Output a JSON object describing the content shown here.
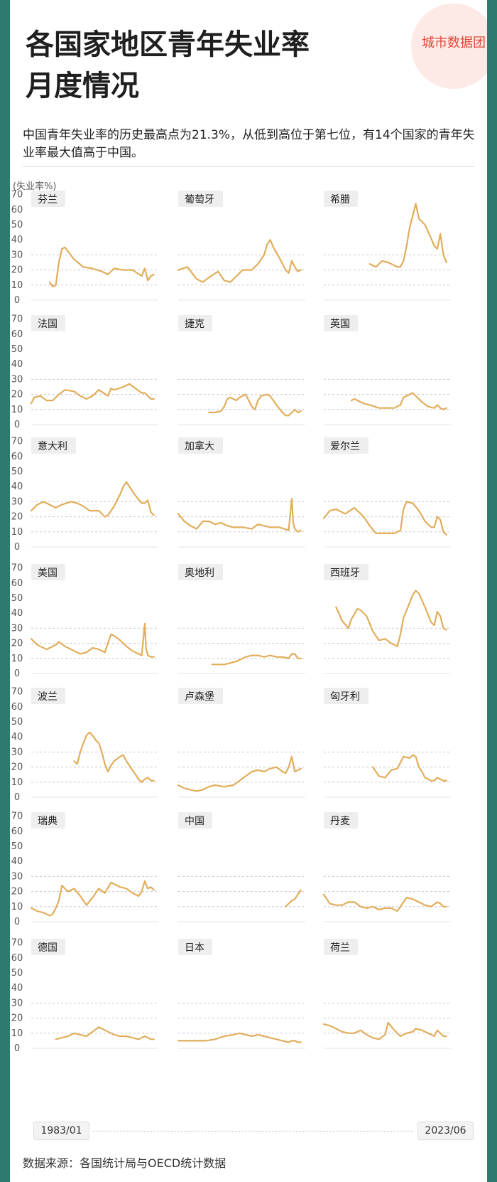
{
  "title_line1": "各国家地区青年失业率",
  "title_line2": "月度情况",
  "logo": "城市数据团",
  "description": "中国青年失业率的历史最高点为21.3%，从低到高位于第七位，有14个国家的青年失业率最大值高于中国。",
  "source": "数据来源：各国统计局与OECD统计数据",
  "colors": {
    "line": "#e2ad5b",
    "grid": "#c9c9c9",
    "label_bg": "#eeeeee",
    "accent": "#e0483a"
  },
  "chart_data": {
    "type": "line",
    "ylabel": "(失业率%)",
    "x_start": "1983/01",
    "x_end": "2023/06",
    "ylim": [
      0,
      70
    ],
    "yticks": [
      0,
      10,
      20,
      30,
      40,
      50,
      60,
      70
    ],
    "panels": [
      {
        "name": "芬兰",
        "x": [
          1989,
          1990,
          1991,
          1992,
          1993,
          1994,
          1997,
          2000,
          2003,
          2006,
          2008,
          2010,
          2013,
          2016,
          2019,
          2020,
          2021,
          2022,
          2023
        ],
        "y": [
          12,
          9,
          10,
          25,
          34,
          35,
          27,
          22,
          21,
          19,
          17,
          21,
          20,
          20,
          16,
          21,
          13,
          16,
          17
        ]
      },
      {
        "name": "葡萄牙",
        "x": [
          1983,
          1986,
          1989,
          1991,
          1993,
          1996,
          1998,
          2000,
          2002,
          2004,
          2007,
          2009,
          2011,
          2012,
          2013,
          2014,
          2016,
          2018,
          2019,
          2020,
          2021,
          2022,
          2023
        ],
        "y": [
          20,
          22,
          14,
          12,
          15,
          19,
          13,
          12,
          16,
          20,
          20,
          24,
          30,
          37,
          40,
          35,
          28,
          20,
          18,
          26,
          22,
          19,
          20
        ]
      },
      {
        "name": "希腊",
        "x": [
          1998,
          2000,
          2002,
          2004,
          2007,
          2008,
          2009,
          2010,
          2011,
          2012,
          2013,
          2014,
          2016,
          2018,
          2019,
          2020,
          2021,
          2022,
          2023
        ],
        "y": [
          24,
          22,
          26,
          25,
          22,
          22,
          26,
          36,
          48,
          56,
          64,
          54,
          50,
          41,
          36,
          34,
          44,
          30,
          25
        ]
      },
      {
        "name": "法国",
        "x": [
          1983,
          1984,
          1986,
          1988,
          1990,
          1992,
          1994,
          1997,
          1999,
          2001,
          2003,
          2005,
          2008,
          2009,
          2010,
          2013,
          2015,
          2017,
          2019,
          2020,
          2021,
          2022,
          2023
        ],
        "y": [
          14,
          18,
          19,
          16,
          16,
          20,
          23,
          22,
          19,
          17,
          19,
          23,
          19,
          24,
          23,
          25,
          27,
          24,
          21,
          21,
          19,
          17,
          17
        ]
      },
      {
        "name": "捷克",
        "x": [
          1993,
          1995,
          1997,
          1998,
          1999,
          2000,
          2002,
          2003,
          2005,
          2007,
          2008,
          2009,
          2010,
          2012,
          2013,
          2015,
          2017,
          2018,
          2019,
          2020,
          2021,
          2022,
          2023
        ],
        "y": [
          8,
          8,
          9,
          12,
          17,
          18,
          16,
          18,
          20,
          12,
          10,
          16,
          19,
          20,
          19,
          13,
          8,
          6,
          6,
          8,
          10,
          8,
          9
        ]
      },
      {
        "name": "英国",
        "x": [
          1992,
          1993,
          1996,
          1998,
          2001,
          2004,
          2006,
          2008,
          2009,
          2011,
          2012,
          2013,
          2015,
          2017,
          2019,
          2020,
          2021,
          2022,
          2023
        ],
        "y": [
          16,
          17,
          14,
          13,
          11,
          11,
          11,
          13,
          18,
          20,
          21,
          19,
          15,
          12,
          11,
          13,
          11,
          10,
          11
        ]
      },
      {
        "name": "意大利",
        "x": [
          1983,
          1985,
          1987,
          1989,
          1991,
          1993,
          1996,
          1998,
          2000,
          2002,
          2005,
          2007,
          2008,
          2010,
          2012,
          2013,
          2014,
          2015,
          2017,
          2019,
          2020,
          2021,
          2022,
          2023
        ],
        "y": [
          24,
          28,
          30,
          28,
          26,
          28,
          30,
          29,
          27,
          24,
          24,
          20,
          21,
          27,
          35,
          40,
          43,
          40,
          34,
          29,
          29,
          31,
          23,
          21
        ]
      },
      {
        "name": "加拿大",
        "x": [
          1983,
          1985,
          1987,
          1989,
          1991,
          1993,
          1995,
          1997,
          1999,
          2001,
          2004,
          2007,
          2009,
          2011,
          2013,
          2016,
          2019,
          2020,
          2020.5,
          2021,
          2022,
          2023
        ],
        "y": [
          22,
          17,
          14,
          12,
          17,
          17,
          15,
          16,
          14,
          13,
          13,
          12,
          15,
          14,
          13,
          13,
          11,
          32,
          16,
          12,
          10,
          11
        ]
      },
      {
        "name": "爱尔兰",
        "x": [
          1983,
          1985,
          1987,
          1990,
          1993,
          1994,
          1996,
          1998,
          2000,
          2003,
          2006,
          2008,
          2009,
          2010,
          2012,
          2014,
          2016,
          2018,
          2019,
          2020,
          2021,
          2022,
          2023
        ],
        "y": [
          19,
          24,
          25,
          22,
          26,
          24,
          20,
          14,
          9,
          9,
          9,
          11,
          25,
          30,
          29,
          24,
          17,
          13,
          13,
          20,
          18,
          10,
          8
        ]
      },
      {
        "name": "美国",
        "x": [
          1983,
          1985,
          1988,
          1991,
          1992,
          1994,
          1996,
          1999,
          2001,
          2003,
          2005,
          2007,
          2009,
          2010,
          2012,
          2014,
          2016,
          2019,
          2020,
          2020.4,
          2021,
          2022,
          2023
        ],
        "y": [
          23,
          19,
          16,
          19,
          21,
          18,
          16,
          13,
          14,
          17,
          16,
          14,
          26,
          25,
          22,
          18,
          15,
          12,
          33,
          17,
          12,
          11,
          11
        ]
      },
      {
        "name": "奥地利",
        "x": [
          1994,
          1996,
          1998,
          2000,
          2002,
          2004,
          2005,
          2007,
          2009,
          2011,
          2013,
          2015,
          2017,
          2019,
          2020,
          2021,
          2022,
          2023
        ],
        "y": [
          6,
          6,
          6,
          7,
          8,
          10,
          11,
          12,
          12,
          11,
          12,
          11,
          11,
          10,
          13,
          13,
          10,
          10
        ]
      },
      {
        "name": "西班牙",
        "x": [
          1987,
          1989,
          1991,
          1992,
          1994,
          1995,
          1997,
          1999,
          2001,
          2003,
          2005,
          2007,
          2008,
          2009,
          2010,
          2012,
          2013,
          2014,
          2016,
          2018,
          2019,
          2020,
          2021,
          2022,
          2023
        ],
        "y": [
          44,
          35,
          30,
          36,
          43,
          42,
          38,
          28,
          22,
          23,
          20,
          18,
          26,
          37,
          42,
          52,
          55,
          53,
          44,
          34,
          32,
          41,
          38,
          30,
          29
        ]
      },
      {
        "name": "波兰",
        "x": [
          1997,
          1998,
          1999,
          2000,
          2001,
          2002,
          2003,
          2004,
          2005,
          2006,
          2007,
          2008,
          2009,
          2010,
          2012,
          2013,
          2014,
          2016,
          2018,
          2019,
          2020,
          2021,
          2022,
          2023
        ],
        "y": [
          24,
          22,
          30,
          36,
          41,
          43,
          41,
          38,
          36,
          30,
          22,
          17,
          21,
          24,
          27,
          28,
          24,
          18,
          12,
          10,
          12,
          13,
          11,
          11
        ]
      },
      {
        "name": "卢森堡",
        "x": [
          1983,
          1985,
          1987,
          1989,
          1991,
          1993,
          1995,
          1998,
          2001,
          2003,
          2005,
          2007,
          2009,
          2011,
          2013,
          2015,
          2017,
          2018,
          2019,
          2020,
          2021,
          2022,
          2023
        ],
        "y": [
          8,
          6,
          5,
          4,
          5,
          7,
          8,
          7,
          8,
          11,
          14,
          17,
          18,
          17,
          19,
          20,
          17,
          16,
          20,
          27,
          17,
          18,
          19
        ]
      },
      {
        "name": "匈牙利",
        "x": [
          1999,
          2001,
          2003,
          2005,
          2007,
          2009,
          2011,
          2012,
          2013,
          2014,
          2015,
          2016,
          2018,
          2019,
          2020,
          2021,
          2022,
          2023
        ],
        "y": [
          20,
          14,
          13,
          18,
          19,
          27,
          26,
          28,
          27,
          20,
          17,
          13,
          11,
          11,
          13,
          12,
          11,
          11
        ]
      },
      {
        "name": "瑞典",
        "x": [
          1983,
          1985,
          1987,
          1989,
          1990,
          1991,
          1992,
          1993,
          1995,
          1997,
          1999,
          2001,
          2003,
          2005,
          2007,
          2009,
          2010,
          2012,
          2014,
          2016,
          2018,
          2019,
          2020,
          2021,
          2022,
          2023
        ],
        "y": [
          9,
          7,
          6,
          4,
          5,
          9,
          14,
          24,
          20,
          22,
          17,
          11,
          16,
          22,
          19,
          26,
          25,
          23,
          22,
          19,
          17,
          20,
          27,
          22,
          23,
          21
        ]
      },
      {
        "name": "中国",
        "x": [
          2018,
          2019,
          2020,
          2021,
          2022,
          2023
        ],
        "y": [
          10,
          12,
          14,
          15,
          18,
          21
        ]
      },
      {
        "name": "丹麦",
        "x": [
          1983,
          1985,
          1987,
          1989,
          1991,
          1993,
          1995,
          1997,
          1999,
          2001,
          2003,
          2005,
          2007,
          2009,
          2010,
          2012,
          2014,
          2016,
          2018,
          2020,
          2021,
          2022,
          2023
        ],
        "y": [
          18,
          12,
          11,
          11,
          13,
          13,
          10,
          9,
          10,
          8,
          9,
          9,
          7,
          13,
          16,
          15,
          13,
          11,
          10,
          13,
          12,
          10,
          10
        ]
      },
      {
        "name": "德国",
        "x": [
          1991,
          1993,
          1995,
          1997,
          1999,
          2001,
          2003,
          2005,
          2006,
          2008,
          2010,
          2012,
          2014,
          2016,
          2018,
          2020,
          2021,
          2022,
          2023
        ],
        "y": [
          6,
          7,
          8,
          10,
          9,
          8,
          11,
          14,
          13,
          11,
          9,
          8,
          8,
          7,
          6,
          8,
          7,
          6,
          6
        ]
      },
      {
        "name": "日本",
        "x": [
          1983,
          1986,
          1989,
          1992,
          1995,
          1998,
          2001,
          2003,
          2005,
          2007,
          2009,
          2011,
          2013,
          2015,
          2017,
          2019,
          2020,
          2021,
          2022,
          2023
        ],
        "y": [
          5,
          5,
          5,
          5,
          6,
          8,
          9,
          10,
          9,
          8,
          9,
          8,
          7,
          6,
          5,
          4,
          5,
          5,
          4,
          4
        ]
      },
      {
        "name": "荷兰",
        "x": [
          1983,
          1985,
          1987,
          1989,
          1991,
          1993,
          1995,
          1997,
          1999,
          2001,
          2003,
          2004,
          2006,
          2008,
          2010,
          2012,
          2013,
          2015,
          2017,
          2019,
          2020,
          2021,
          2022,
          2023
        ],
        "y": [
          16,
          15,
          13,
          11,
          10,
          10,
          12,
          9,
          7,
          6,
          9,
          17,
          12,
          8,
          10,
          11,
          13,
          12,
          10,
          8,
          12,
          10,
          8,
          8
        ]
      }
    ]
  }
}
